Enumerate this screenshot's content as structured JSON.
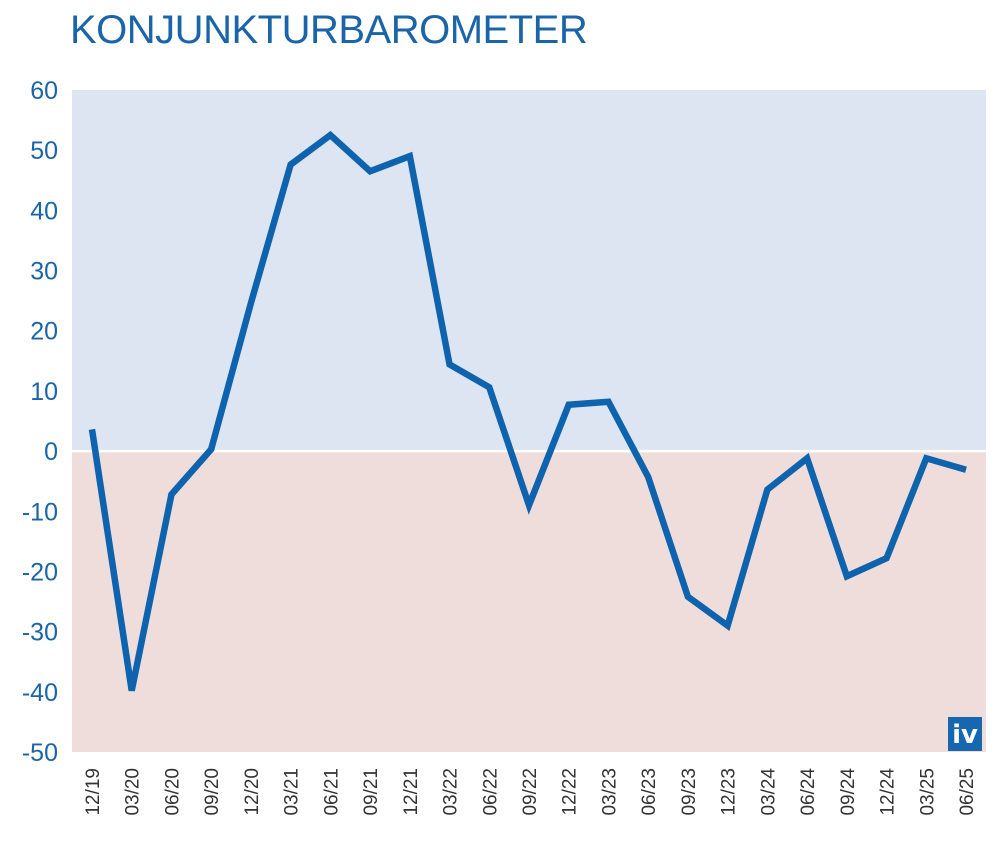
{
  "chart_data": {
    "type": "line",
    "title": "KONJUNKTURBAROMETER",
    "xlabel": "",
    "ylabel": "",
    "ylim": [
      -50,
      60
    ],
    "yticks": [
      "60",
      "50",
      "40",
      "30",
      "20",
      "10",
      "0",
      "-10",
      "-20",
      "-30",
      "-40",
      "-50"
    ],
    "ytick_values": [
      60,
      50,
      40,
      30,
      20,
      10,
      0,
      -10,
      -20,
      -30,
      -40,
      -50
    ],
    "categories": [
      "12/19",
      "03/20",
      "06/20",
      "09/20",
      "12/20",
      "03/21",
      "06/21",
      "09/21",
      "12/21",
      "03/22",
      "06/22",
      "09/22",
      "12/22",
      "03/23",
      "06/23",
      "09/23",
      "12/23",
      "03/24",
      "06/24",
      "09/24",
      "12/24",
      "03/25",
      "06/25"
    ],
    "series": [
      {
        "values": [
          3.6,
          -39.8,
          -7.2,
          0.3,
          24.6,
          47.6,
          52.5,
          46.5,
          49.0,
          14.4,
          10.6,
          -9.0,
          7.7,
          8.2,
          -4.3,
          -24.2,
          -29.0,
          -6.4,
          -1.2,
          -20.8,
          -17.8,
          -1.2,
          -3.1
        ]
      }
    ],
    "grid": false,
    "legend": "none",
    "colors": {
      "line": "#0d63ad",
      "positive_band": "#dde5f3",
      "negative_band": "#efdddc",
      "axis_text": "#1a65aa",
      "tick_text": "#333333"
    },
    "logo": {
      "text": "iv",
      "color": "#1667b0"
    }
  }
}
